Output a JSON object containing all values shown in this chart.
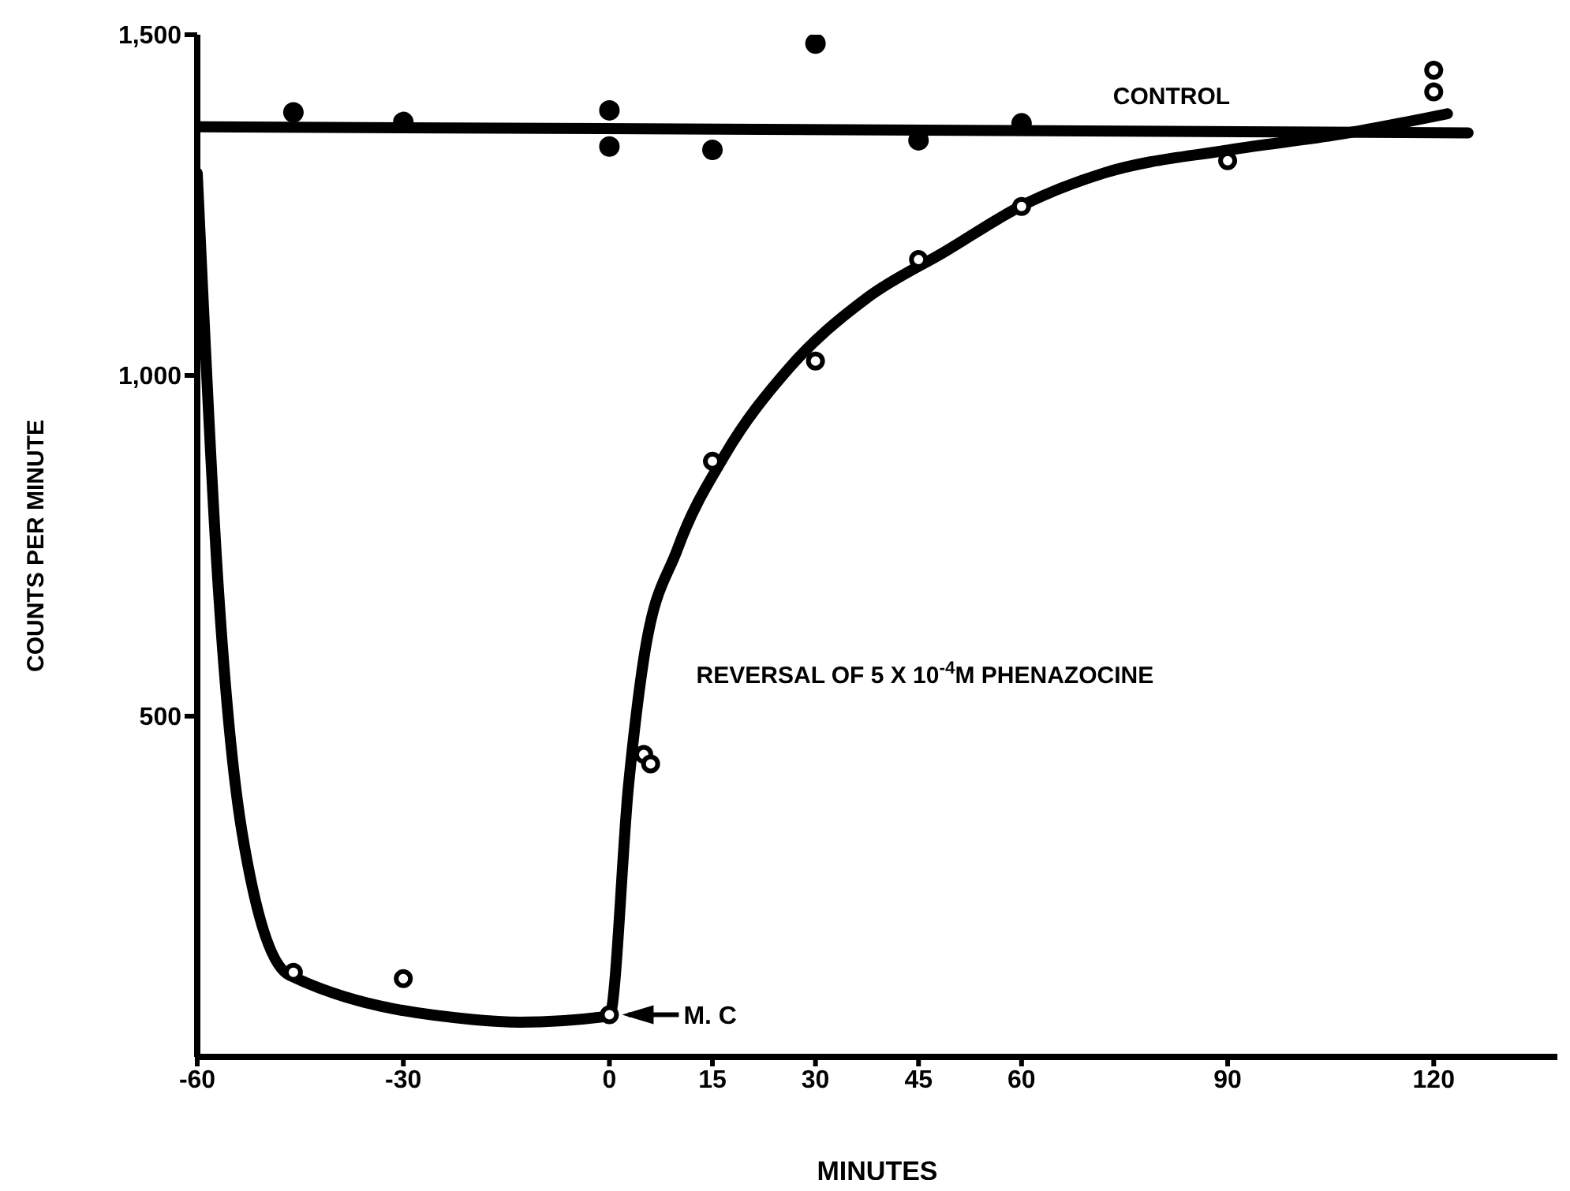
{
  "chart_data": {
    "type": "scatter",
    "xlabel": "MINUTES",
    "ylabel": "COUNTS PER MINUTE",
    "xlim": [
      -60,
      138
    ],
    "xticks": [
      -60,
      -30,
      0,
      15,
      30,
      45,
      60,
      90,
      120
    ],
    "ylim": [
      0,
      1500
    ],
    "yticks": [
      500,
      {
        "value": 1000,
        "label": "1,000"
      },
      {
        "value": 1500,
        "label": "1,500"
      }
    ],
    "line_style": "solid",
    "series": [
      {
        "marker": "circle",
        "color": "#000000",
        "x": [
          -46,
          -30,
          0,
          0,
          15,
          30,
          45,
          60
        ],
        "values": [
          1386,
          1372,
          1389,
          1336,
          1331,
          1487,
          1345,
          1370
        ]
      },
      {
        "marker": "circle",
        "color": "#000000",
        "x": [
          -46,
          -30,
          0,
          5,
          6,
          15,
          30,
          45,
          60,
          90,
          120,
          120
        ],
        "values": [
          124,
          115,
          62,
          444,
          430,
          874,
          1021,
          1170,
          1248,
          1315,
          1448,
          1416
        ]
      },
      {
        "type": "line",
        "marker": "none",
        "name": "CONTROL",
        "color": "#000000",
        "x": [
          -60,
          125
        ],
        "values": [
          1365,
          1356
        ]
      },
      {
        "type": "line",
        "marker": "none",
        "name": "REVERSAL OF 5 X 10$^{-4}$M PHENAZOCINE",
        "color": "#000000",
        "x": [
          -60,
          -57,
          -53.5,
          -46.6,
          -20,
          -13,
          0,
          2.8,
          5,
          9.9,
          16.8,
          26,
          37.4,
          48.9,
          60.4,
          72,
          90.3,
          106.4,
          122
        ],
        "values": [
          1297,
          699,
          331,
          120,
          55,
          51,
          60,
          400,
          584,
          745,
          883,
          1009,
          1113,
          1182,
          1251,
          1297,
          1331,
          1354,
          1384
        ]
      }
    ],
    "annotations": [
      {
        "text": "M. C",
        "x": 0,
        "y": 62
      }
    ]
  }
}
